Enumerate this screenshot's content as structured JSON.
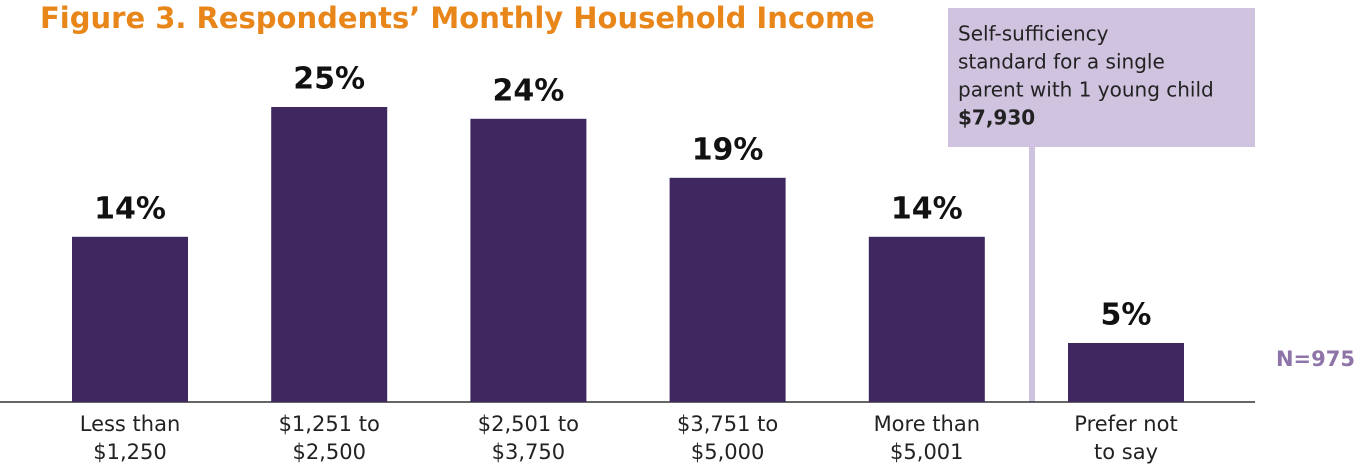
{
  "chart_data": {
    "type": "bar",
    "title": "Figure 3. Respondents’ Monthly Household Income",
    "categories": [
      [
        "Less than",
        "$1,250"
      ],
      [
        "$1,251 to",
        "$2,500"
      ],
      [
        "$2,501 to",
        "$3,750"
      ],
      [
        "$3,751 to",
        "$5,000"
      ],
      [
        "More than",
        "$5,001"
      ],
      [
        "Prefer not",
        "to say"
      ]
    ],
    "values": [
      14,
      25,
      24,
      19,
      14,
      5
    ],
    "value_labels": [
      "14%",
      "25%",
      "24%",
      "19%",
      "14%",
      "5%"
    ],
    "color": "#3f2760",
    "annotation": {
      "lines": [
        "Self-sufficiency",
        "standard for a single",
        "parent with 1 young child"
      ],
      "value": "$7,930"
    },
    "note": "N=975"
  }
}
